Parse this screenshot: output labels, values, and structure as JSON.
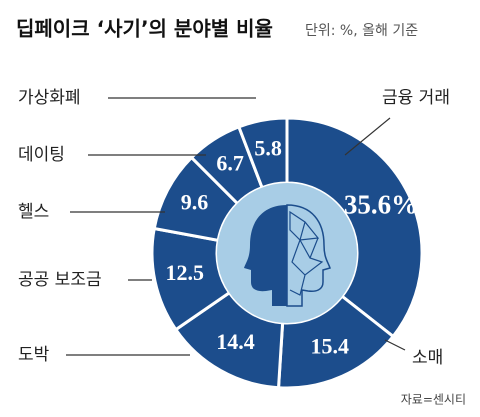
{
  "chart_data": {
    "type": "donut",
    "title": "딥페이크 ‘사기’의 분야별 비율",
    "subtitle": "단위: %, 올해 기준",
    "source": "자료=센시티",
    "categories": [
      "금융 거래",
      "소매",
      "도박",
      "공공 보조금",
      "헬스",
      "데이팅",
      "가상화폐"
    ],
    "values": [
      35.6,
      15.4,
      14.4,
      12.5,
      9.6,
      6.7,
      5.8
    ],
    "value_labels": [
      "35.6%",
      "15.4",
      "14.4",
      "12.5",
      "9.6",
      "6.7",
      "5.8"
    ],
    "color": "#1c4d8c"
  }
}
